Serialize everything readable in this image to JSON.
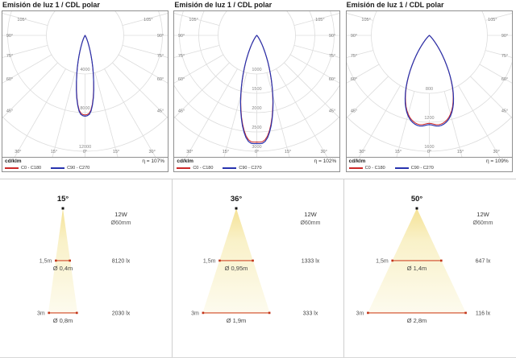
{
  "chart_data": {
    "polar": [
      {
        "type": "polar_line",
        "title": "Emisión de luz 1 / CDL polar",
        "unit": "cd/klm",
        "efficiency": "η = 107%",
        "legend": [
          {
            "label": "C0 - C180",
            "color": "#cc2727"
          },
          {
            "label": "C90 - C270",
            "color": "#2733ae"
          }
        ],
        "ring_values": [
          4000,
          8000,
          12000
        ],
        "ring_max": 12000,
        "angle_max": 105,
        "angle_step": 15,
        "curve": {
          "peak": 9300,
          "halfwidth_deg": 11,
          "shape": 1.8,
          "dip": 0.1
        }
      },
      {
        "type": "polar_line",
        "title": "Emisión de luz 1 / CDL polar",
        "unit": "cd/klm",
        "efficiency": "η = 102%",
        "legend": [
          {
            "label": "C0 - C180",
            "color": "#cc2727"
          },
          {
            "label": "C90 - C270",
            "color": "#2733ae"
          }
        ],
        "ring_values": [
          1000,
          1500,
          2000,
          2500,
          3000
        ],
        "ring_max": 3000,
        "angle_max": 105,
        "angle_step": 15,
        "curve": {
          "peak": 2950,
          "halfwidth_deg": 16,
          "shape": 2.0,
          "dip": 0.05
        }
      },
      {
        "type": "polar_line",
        "title": "Emisión de luz 1 / CDL polar",
        "unit": "cd/klm",
        "efficiency": "η = 109%",
        "legend": [
          {
            "label": "C0 - C180",
            "color": "#cc2727"
          },
          {
            "label": "C90 - C270",
            "color": "#2733ae"
          }
        ],
        "ring_values": [
          800,
          1200,
          1600
        ],
        "ring_max": 1600,
        "angle_max": 105,
        "angle_step": 15,
        "curve": {
          "peak": 1270,
          "halfwidth_deg": 27,
          "shape": 3.2,
          "dip": 0.03
        }
      }
    ],
    "beam": [
      {
        "type": "beam_cone",
        "beam_angle": "15°",
        "power": "12W",
        "fixture_diameter": "Ø60mm",
        "rows": [
          {
            "distance_label": "1,5m",
            "distance_m": 1.5,
            "spot_label": "Ø 0,4m",
            "spot_m": 0.4,
            "lux": "8120 lx"
          },
          {
            "distance_label": "3m",
            "distance_m": 3,
            "spot_label": "Ø 0,8m",
            "spot_m": 0.8,
            "lux": "2030 lx"
          }
        ]
      },
      {
        "type": "beam_cone",
        "beam_angle": "36°",
        "power": "12W",
        "fixture_diameter": "Ø60mm",
        "rows": [
          {
            "distance_label": "1,5m",
            "distance_m": 1.5,
            "spot_label": "Ø 0,95m",
            "spot_m": 0.95,
            "lux": "1333 lx"
          },
          {
            "distance_label": "3m",
            "distance_m": 3,
            "spot_label": "Ø 1,9m",
            "spot_m": 1.9,
            "lux": "333 lx"
          }
        ]
      },
      {
        "type": "beam_cone",
        "beam_angle": "50°",
        "power": "12W",
        "fixture_diameter": "Ø60mm",
        "rows": [
          {
            "distance_label": "1,5m",
            "distance_m": 1.5,
            "spot_label": "Ø 1,4m",
            "spot_m": 1.4,
            "lux": "647 lx"
          },
          {
            "distance_label": "3m",
            "distance_m": 3,
            "spot_label": "Ø 2,8m",
            "spot_m": 2.8,
            "lux": "116 lx"
          }
        ]
      }
    ],
    "colors": {
      "curve_blue": "#2733ae",
      "curve_red": "#cc2727",
      "grid": "#dcdcdc",
      "measure_line": "#d1492a",
      "measure_marker": "#c23318",
      "cone_top": "#f5e296",
      "cone_mid": "#f9f1c8",
      "cone_bottom": "#fdfbef"
    }
  }
}
